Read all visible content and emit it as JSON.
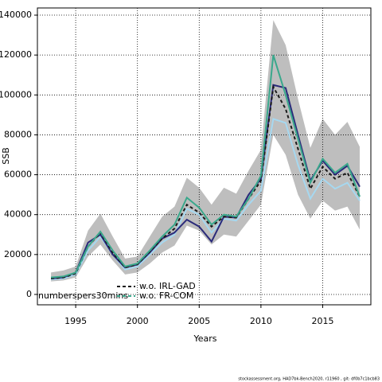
{
  "chart_data": {
    "type": "line",
    "y_label": "SSB",
    "x_label": "Years",
    "annotation": "numberspers30mins",
    "footer": "stockassessment.org, HAD7bk-Bench2020, r11960 , git: df0b7c1bcb83",
    "x": [
      1993,
      1994,
      1995,
      1996,
      1997,
      1998,
      1999,
      2000,
      2001,
      2002,
      2003,
      2004,
      2005,
      2006,
      2007,
      2008,
      2009,
      2010,
      2011,
      2012,
      2013,
      2014,
      2015,
      2016,
      2017,
      2018
    ],
    "band": {
      "color": "#bebebe",
      "upper": [
        11000,
        12000,
        14000,
        32000,
        40500,
        29000,
        18000,
        19000,
        29000,
        39000,
        44000,
        58500,
        53500,
        45000,
        53500,
        50500,
        62000,
        72500,
        137500,
        125000,
        98000,
        73500,
        88000,
        80000,
        86500,
        74000
      ],
      "lower": [
        6500,
        7000,
        8500,
        19000,
        25000,
        17000,
        10000,
        11000,
        15500,
        21000,
        24500,
        34500,
        32000,
        25000,
        30000,
        29000,
        37000,
        45000,
        80000,
        70000,
        50000,
        38000,
        47000,
        42000,
        44000,
        32500
      ]
    },
    "series": [
      {
        "color": "#a6d8f0",
        "dashed": false,
        "values": [
          7500,
          8000,
          10000,
          22000,
          29000,
          20000,
          12500,
          14000,
          20000,
          26000,
          30000,
          43000,
          40000,
          31000,
          38000,
          37000,
          45000,
          52000,
          88000,
          86000,
          65000,
          48000,
          58000,
          53000,
          56000,
          47000
        ]
      },
      {
        "color": "#2a2a7a",
        "dashed": false,
        "values": [
          8000,
          8500,
          11000,
          26000,
          30000,
          20000,
          13500,
          15000,
          21000,
          28000,
          31000,
          37500,
          34000,
          26500,
          39000,
          38500,
          50000,
          58000,
          105000,
          103500,
          80000,
          57000,
          67000,
          60000,
          64500,
          54000
        ]
      },
      {
        "name": "w.o. IRL-GAD",
        "color": "#1a1a1a",
        "dashed": true,
        "values": [
          8000,
          8500,
          10500,
          24000,
          31000,
          21000,
          13500,
          15000,
          21500,
          28000,
          33000,
          45000,
          41000,
          34000,
          39000,
          38500,
          48000,
          57000,
          104000,
          93000,
          73000,
          53000,
          64000,
          58000,
          61000,
          49000
        ]
      },
      {
        "name": "w.o. FR-COM",
        "color": "#3aa88c",
        "dashed": false,
        "values": [
          8500,
          9000,
          11000,
          24000,
          31500,
          22000,
          14000,
          15500,
          22000,
          29000,
          35000,
          48500,
          43500,
          35000,
          40000,
          39000,
          48000,
          59500,
          120000,
          100000,
          78000,
          56000,
          68000,
          61000,
          65500,
          49000
        ]
      }
    ],
    "xlim": [
      1991.9,
      2018.9
    ],
    "xticks": [
      1995,
      2000,
      2005,
      2010,
      2015
    ],
    "ylim": [
      -5200,
      143600
    ],
    "yticks": [
      0,
      20000,
      40000,
      60000,
      80000,
      100000,
      120000,
      140000
    ],
    "grid": true
  }
}
